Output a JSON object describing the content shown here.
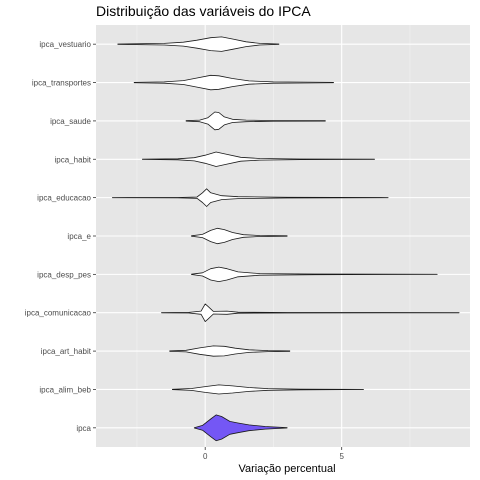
{
  "chart_data": {
    "type": "violin",
    "title": "Distribuição das variáveis do IPCA",
    "xlabel": "Variação percentual",
    "ylabel": "",
    "xlim": [
      -4,
      9.7
    ],
    "x_ticks": [
      0,
      5
    ],
    "x_tick_labels": [
      "0",
      "5"
    ],
    "grid": true,
    "legend": "none",
    "colors": {
      "panel_bg": "#e6e6e6",
      "grid_major": "#ffffff",
      "grid_minor": "#f2f2f2",
      "violin_outline": "#1a1a1a",
      "violin_fill_default": "#ffffff",
      "violin_fill_highlight": "#7457f5"
    },
    "categories": [
      "ipca_vestuario",
      "ipca_transportes",
      "ipca_saude",
      "ipca_habit",
      "ipca_educacao",
      "ipca_e",
      "ipca_desp_pes",
      "ipca_comunicacao",
      "ipca_art_habit",
      "ipca_alim_beb",
      "ipca"
    ],
    "series": [
      {
        "category": "ipca_vestuario",
        "min": -3.2,
        "max": 2.7,
        "fill": "white",
        "density": [
          [
            -3.2,
            0.01
          ],
          [
            -1.5,
            0.05
          ],
          [
            -0.8,
            0.12
          ],
          [
            -0.3,
            0.25
          ],
          [
            0.2,
            0.4
          ],
          [
            0.6,
            0.45
          ],
          [
            1.0,
            0.32
          ],
          [
            1.5,
            0.15
          ],
          [
            2.0,
            0.05
          ],
          [
            2.7,
            0.01
          ]
        ]
      },
      {
        "category": "ipca_transportes",
        "min": -2.6,
        "max": 4.7,
        "fill": "white",
        "density": [
          [
            -2.6,
            0.01
          ],
          [
            -1.5,
            0.04
          ],
          [
            -0.8,
            0.12
          ],
          [
            -0.3,
            0.28
          ],
          [
            0.2,
            0.45
          ],
          [
            0.5,
            0.42
          ],
          [
            1.0,
            0.25
          ],
          [
            1.6,
            0.1
          ],
          [
            2.5,
            0.04
          ],
          [
            4.7,
            0.01
          ]
        ]
      },
      {
        "category": "ipca_saude",
        "min": -0.7,
        "max": 4.4,
        "fill": "white",
        "density": [
          [
            -0.7,
            0.01
          ],
          [
            -0.2,
            0.05
          ],
          [
            0.1,
            0.2
          ],
          [
            0.35,
            0.55
          ],
          [
            0.5,
            0.52
          ],
          [
            0.7,
            0.25
          ],
          [
            1.0,
            0.1
          ],
          [
            1.5,
            0.05
          ],
          [
            2.5,
            0.02
          ],
          [
            4.4,
            0.01
          ]
        ]
      },
      {
        "category": "ipca_habit",
        "min": -2.3,
        "max": 6.2,
        "fill": "white",
        "density": [
          [
            -2.3,
            0.01
          ],
          [
            -1.0,
            0.03
          ],
          [
            -0.4,
            0.1
          ],
          [
            0.0,
            0.25
          ],
          [
            0.4,
            0.45
          ],
          [
            0.8,
            0.3
          ],
          [
            1.3,
            0.12
          ],
          [
            2.0,
            0.05
          ],
          [
            3.5,
            0.02
          ],
          [
            6.2,
            0.01
          ]
        ]
      },
      {
        "category": "ipca_educacao",
        "min": -3.4,
        "max": 6.7,
        "fill": "white",
        "density": [
          [
            -3.4,
            0.005
          ],
          [
            -1.0,
            0.01
          ],
          [
            -0.3,
            0.04
          ],
          [
            -0.1,
            0.3
          ],
          [
            0.05,
            0.55
          ],
          [
            0.2,
            0.3
          ],
          [
            0.6,
            0.12
          ],
          [
            1.2,
            0.06
          ],
          [
            3.0,
            0.02
          ],
          [
            6.7,
            0.005
          ]
        ]
      },
      {
        "category": "ipca_e",
        "min": -0.5,
        "max": 3.0,
        "fill": "white",
        "density": [
          [
            -0.5,
            0.01
          ],
          [
            -0.1,
            0.1
          ],
          [
            0.2,
            0.35
          ],
          [
            0.45,
            0.48
          ],
          [
            0.7,
            0.4
          ],
          [
            1.0,
            0.22
          ],
          [
            1.4,
            0.08
          ],
          [
            2.0,
            0.03
          ],
          [
            3.0,
            0.01
          ]
        ]
      },
      {
        "category": "ipca_desp_pes",
        "min": -0.5,
        "max": 8.5,
        "fill": "white",
        "density": [
          [
            -0.5,
            0.01
          ],
          [
            -0.1,
            0.1
          ],
          [
            0.2,
            0.35
          ],
          [
            0.5,
            0.45
          ],
          [
            0.8,
            0.35
          ],
          [
            1.2,
            0.15
          ],
          [
            2.0,
            0.05
          ],
          [
            4.0,
            0.02
          ],
          [
            8.5,
            0.005
          ]
        ]
      },
      {
        "category": "ipca_comunicacao",
        "min": -1.6,
        "max": 9.3,
        "fill": "white",
        "density": [
          [
            -1.6,
            0.005
          ],
          [
            -0.6,
            0.02
          ],
          [
            -0.15,
            0.1
          ],
          [
            0.0,
            0.55
          ],
          [
            0.1,
            0.4
          ],
          [
            0.3,
            0.08
          ],
          [
            0.8,
            0.1
          ],
          [
            1.2,
            0.03
          ],
          [
            3.0,
            0.015
          ],
          [
            9.3,
            0.005
          ]
        ]
      },
      {
        "category": "ipca_art_habit",
        "min": -1.3,
        "max": 3.1,
        "fill": "white",
        "density": [
          [
            -1.3,
            0.01
          ],
          [
            -0.7,
            0.05
          ],
          [
            -0.2,
            0.2
          ],
          [
            0.3,
            0.32
          ],
          [
            0.7,
            0.3
          ],
          [
            1.1,
            0.18
          ],
          [
            1.6,
            0.08
          ],
          [
            2.3,
            0.03
          ],
          [
            3.1,
            0.01
          ]
        ]
      },
      {
        "category": "ipca_alim_beb",
        "min": -1.2,
        "max": 5.8,
        "fill": "white",
        "density": [
          [
            -1.2,
            0.01
          ],
          [
            -0.5,
            0.06
          ],
          [
            0.0,
            0.18
          ],
          [
            0.5,
            0.28
          ],
          [
            1.0,
            0.22
          ],
          [
            1.6,
            0.12
          ],
          [
            2.3,
            0.05
          ],
          [
            3.5,
            0.02
          ],
          [
            5.8,
            0.005
          ]
        ]
      },
      {
        "category": "ipca",
        "min": -0.4,
        "max": 3.0,
        "fill": "highlight",
        "density": [
          [
            -0.4,
            0.01
          ],
          [
            -0.1,
            0.15
          ],
          [
            0.2,
            0.55
          ],
          [
            0.4,
            0.8
          ],
          [
            0.6,
            0.7
          ],
          [
            0.9,
            0.4
          ],
          [
            1.2,
            0.3
          ],
          [
            1.6,
            0.18
          ],
          [
            2.2,
            0.08
          ],
          [
            3.0,
            0.01
          ]
        ]
      }
    ]
  }
}
